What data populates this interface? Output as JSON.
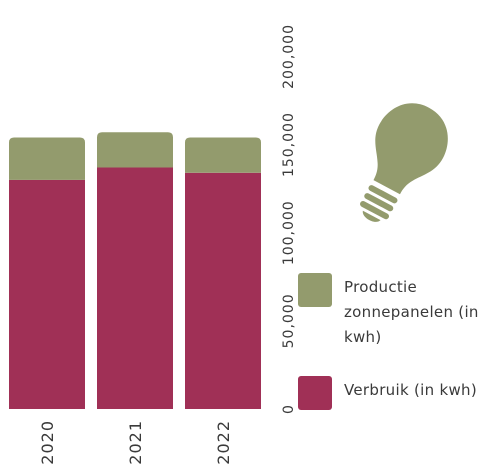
{
  "chart_data": {
    "type": "bar",
    "stacked": true,
    "orientation": "vertical",
    "categories": [
      "2020",
      "2021",
      "2022"
    ],
    "series": [
      {
        "name": "Verbruik (in kwh)",
        "color": "#a03056",
        "values": [
          130000,
          137000,
          134000
        ]
      },
      {
        "name": "Productie zonnepanelen (in kwh)",
        "color": "#939b6d",
        "values": [
          24000,
          20000,
          20000
        ]
      }
    ],
    "y_ticks": [
      "0",
      "50,000",
      "100,000",
      "150,000",
      "200,000"
    ],
    "ylim": [
      0,
      215000
    ],
    "axis_label_rotation": "vertical",
    "title": "",
    "xlabel": "",
    "ylabel": ""
  },
  "legend": {
    "productie_label": "Productie zonnepanelen (in kwh)",
    "verbruik_label": "Verbruik (in kwh)"
  },
  "decoration": {
    "icon": "lightbulb-icon",
    "color": "#939b6d"
  }
}
